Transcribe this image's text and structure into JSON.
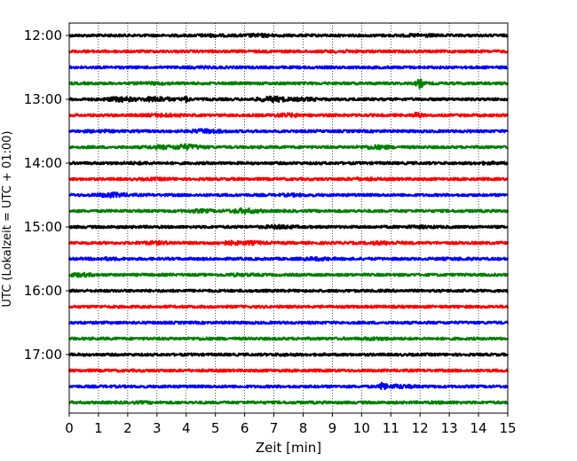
{
  "chart_data": {
    "type": "line",
    "subtype": "helicorder",
    "xlabel": "Zeit  [min]",
    "ylabel": "UTC (Lokalzeit = UTC + 01:00)",
    "xlim": [
      0,
      15
    ],
    "x_ticks": [
      0,
      1,
      2,
      3,
      4,
      5,
      6,
      7,
      8,
      9,
      10,
      11,
      12,
      13,
      14,
      15
    ],
    "x_gridlines": "dotted, every 1 min",
    "y_ticks": [
      "12:00",
      "13:00",
      "14:00",
      "15:00",
      "16:00",
      "17:00"
    ],
    "trace_interval_min": 15,
    "colors": [
      "#000000",
      "#ff0000",
      "#0000ff",
      "#008000"
    ],
    "traces": [
      {
        "start": "12:00",
        "color": "#000000",
        "events": [
          [
            4.8,
            1.4
          ],
          [
            6.5,
            1.6
          ],
          [
            12.0,
            1.5
          ]
        ]
      },
      {
        "start": "12:15",
        "color": "#ff0000",
        "events": [
          [
            9.3,
            1.3
          ]
        ]
      },
      {
        "start": "12:30",
        "color": "#0000ff",
        "events": [
          [
            4.5,
            1.2
          ]
        ]
      },
      {
        "start": "12:45",
        "color": "#008000",
        "events": [
          [
            12.0,
            4.0
          ],
          [
            3.0,
            1.3
          ]
        ]
      },
      {
        "start": "13:00",
        "color": "#000000",
        "events": [
          [
            1.8,
            2.2
          ],
          [
            3.0,
            2.3
          ],
          [
            4.0,
            2.6
          ],
          [
            7.0,
            2.5
          ],
          [
            8.0,
            1.6
          ]
        ]
      },
      {
        "start": "13:15",
        "color": "#ff0000",
        "events": [
          [
            3.2,
            1.6
          ],
          [
            7.5,
            1.7
          ],
          [
            11.9,
            3.0
          ]
        ]
      },
      {
        "start": "13:30",
        "color": "#0000ff",
        "events": [
          [
            4.7,
            2.0
          ],
          [
            1.0,
            1.3
          ]
        ]
      },
      {
        "start": "13:45",
        "color": "#008000",
        "events": [
          [
            3.2,
            1.8
          ],
          [
            4.0,
            2.4
          ],
          [
            10.5,
            1.9
          ]
        ]
      },
      {
        "start": "14:00",
        "color": "#000000",
        "events": [
          [
            2.4,
            1.3
          ],
          [
            14.3,
            1.3
          ]
        ]
      },
      {
        "start": "14:15",
        "color": "#ff0000",
        "events": [
          [
            3.1,
            1.3
          ],
          [
            10.0,
            1.4
          ]
        ]
      },
      {
        "start": "14:30",
        "color": "#0000ff",
        "events": [
          [
            1.5,
            2.2
          ],
          [
            7.7,
            1.4
          ]
        ]
      },
      {
        "start": "14:45",
        "color": "#008000",
        "events": [
          [
            4.5,
            1.6
          ],
          [
            6.0,
            2.2
          ]
        ]
      },
      {
        "start": "15:00",
        "color": "#000000",
        "events": [
          [
            7.2,
            1.8
          ],
          [
            12.0,
            1.4
          ]
        ]
      },
      {
        "start": "15:15",
        "color": "#ff0000",
        "events": [
          [
            3.0,
            1.6
          ],
          [
            5.5,
            1.8
          ],
          [
            6.2,
            1.7
          ],
          [
            10.8,
            1.6
          ]
        ]
      },
      {
        "start": "15:30",
        "color": "#0000ff",
        "events": [
          [
            1.3,
            1.4
          ],
          [
            8.5,
            1.6
          ],
          [
            13.3,
            1.3
          ]
        ]
      },
      {
        "start": "15:45",
        "color": "#008000",
        "events": [
          [
            0.3,
            1.8
          ],
          [
            5.8,
            1.4
          ]
        ]
      },
      {
        "start": "16:00",
        "color": "#000000",
        "events": []
      },
      {
        "start": "16:15",
        "color": "#ff0000",
        "events": []
      },
      {
        "start": "16:30",
        "color": "#0000ff",
        "events": []
      },
      {
        "start": "16:45",
        "color": "#008000",
        "events": [
          [
            10.5,
            1.5
          ],
          [
            4.5,
            1.2
          ]
        ]
      },
      {
        "start": "17:00",
        "color": "#000000",
        "events": [
          [
            7.3,
            1.2
          ]
        ]
      },
      {
        "start": "17:15",
        "color": "#ff0000",
        "events": []
      },
      {
        "start": "17:30",
        "color": "#0000ff",
        "events": [
          [
            10.75,
            4.0
          ],
          [
            11.3,
            1.8
          ]
        ]
      },
      {
        "start": "17:45",
        "color": "#008000",
        "events": [
          [
            2.5,
            1.2
          ],
          [
            12.8,
            1.2
          ]
        ]
      }
    ]
  }
}
